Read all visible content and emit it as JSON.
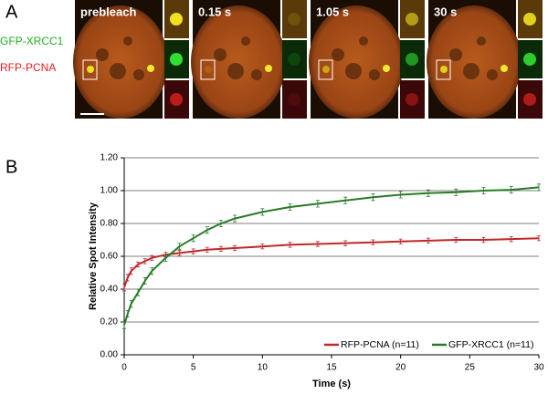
{
  "panel_a": {
    "letter": "A",
    "channels": [
      {
        "name": "GFP-XRCC1",
        "color": "#22b022"
      },
      {
        "name": "RFP-PCNA",
        "color": "#e02020"
      }
    ],
    "images": [
      {
        "label": "prebleach"
      },
      {
        "label": "0.15 s"
      },
      {
        "label": "1.05 s"
      },
      {
        "label": "30 s"
      }
    ]
  },
  "chart_data": {
    "type": "line",
    "letter": "B",
    "x_label": "Time (s)",
    "y_label": "Relative Spot Intensity",
    "x": [
      0,
      0.25,
      0.5,
      1,
      1.5,
      2,
      3,
      4,
      5,
      6,
      7,
      8,
      10,
      12,
      14,
      16,
      18,
      20,
      22,
      24,
      26,
      28,
      30
    ],
    "series": [
      {
        "name": "RFP-PCNA (n=11)",
        "color": "#c0282a",
        "values": [
          0.41,
          0.47,
          0.51,
          0.55,
          0.57,
          0.59,
          0.61,
          0.62,
          0.63,
          0.64,
          0.645,
          0.65,
          0.66,
          0.67,
          0.675,
          0.68,
          0.685,
          0.69,
          0.695,
          0.7,
          0.7,
          0.705,
          0.71
        ],
        "errors": [
          0.02,
          0.02,
          0.02,
          0.015,
          0.015,
          0.015,
          0.015,
          0.015,
          0.015,
          0.015,
          0.015,
          0.015,
          0.015,
          0.015,
          0.015,
          0.015,
          0.015,
          0.015,
          0.015,
          0.015,
          0.015,
          0.015,
          0.015
        ]
      },
      {
        "name": "GFP-XRCC1 (n=11)",
        "color": "#2a7a2a",
        "values": [
          0.18,
          0.25,
          0.31,
          0.38,
          0.45,
          0.51,
          0.59,
          0.66,
          0.71,
          0.76,
          0.8,
          0.83,
          0.87,
          0.9,
          0.92,
          0.94,
          0.96,
          0.975,
          0.985,
          0.99,
          1.0,
          1.005,
          1.02
        ],
        "errors": [
          0.02,
          0.02,
          0.02,
          0.02,
          0.02,
          0.02,
          0.02,
          0.02,
          0.02,
          0.02,
          0.02,
          0.02,
          0.02,
          0.02,
          0.02,
          0.02,
          0.02,
          0.02,
          0.02,
          0.02,
          0.02,
          0.02,
          0.02
        ]
      }
    ],
    "xlim": [
      0,
      30
    ],
    "xticks": [
      0,
      5,
      10,
      15,
      20,
      25,
      30
    ],
    "ylim": [
      0,
      1.2
    ],
    "yticks": [
      {
        "value": 0,
        "label": "0.00"
      },
      {
        "value": 0.2,
        "label": "0.20"
      },
      {
        "value": 0.4,
        "label": "0.40"
      },
      {
        "value": 0.6,
        "label": "0.60"
      },
      {
        "value": 0.8,
        "label": "0.80"
      },
      {
        "value": 1,
        "label": "1.00"
      },
      {
        "value": 1.2,
        "label": "1.20"
      }
    ],
    "grid": true,
    "legend": "bottom-right"
  }
}
